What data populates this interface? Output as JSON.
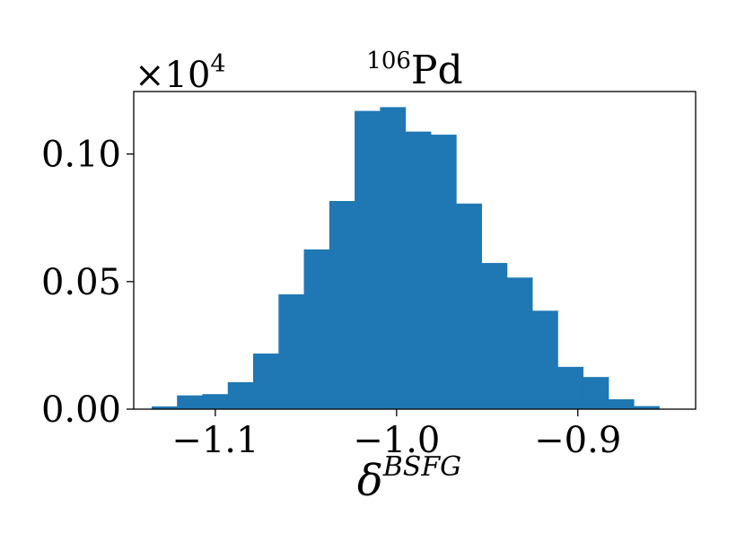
{
  "chart_data": {
    "type": "bar",
    "title_sup": "106",
    "title_main": "Pd",
    "xlabel_main": "δ",
    "xlabel_sup": "BSFG",
    "ylabel": "",
    "y_multiplier_base": "×10",
    "y_multiplier_exp": "4",
    "xlim": [
      -1.145,
      -0.835
    ],
    "ylim": [
      0,
      0.1245
    ],
    "bin_start": -1.135,
    "bin_width": 0.014,
    "values": [
      0.001,
      0.0053,
      0.0058,
      0.0105,
      0.0217,
      0.0449,
      0.0625,
      0.0815,
      0.1168,
      0.1183,
      0.1087,
      0.1075,
      0.0805,
      0.0572,
      0.0515,
      0.0385,
      0.0165,
      0.0125,
      0.0038,
      0.0011
    ],
    "bar_color": "#1f77b4",
    "x_ticks": [
      {
        "value": -1.1,
        "label": "−1.1"
      },
      {
        "value": -1.0,
        "label": "−1.0"
      },
      {
        "value": -0.9,
        "label": "−0.9"
      }
    ],
    "y_ticks": [
      {
        "value": 0.0,
        "label": "0.00"
      },
      {
        "value": 0.05,
        "label": "0.05"
      },
      {
        "value": 0.1,
        "label": "0.10"
      }
    ],
    "grid": false,
    "legend": "none"
  }
}
